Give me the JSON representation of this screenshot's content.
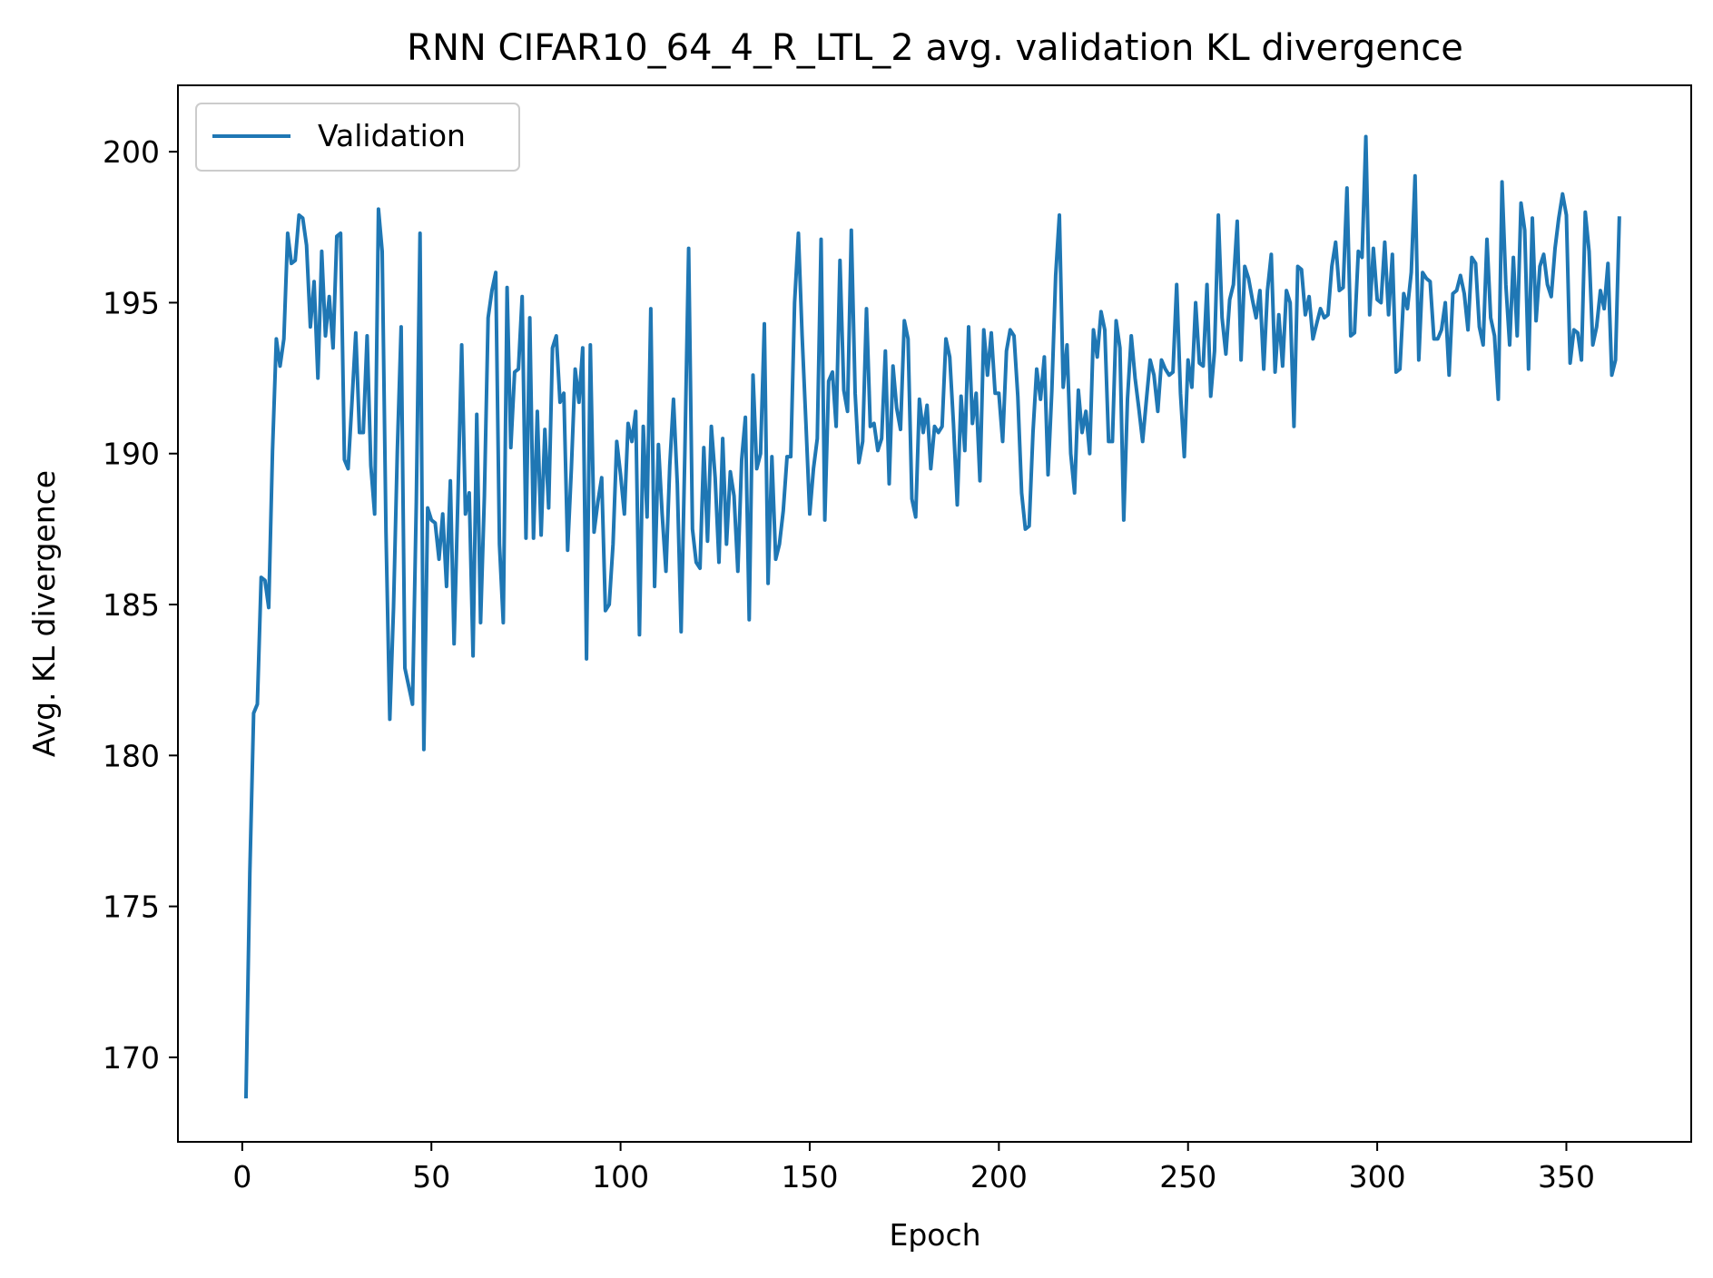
{
  "chart_data": {
    "type": "line",
    "title": "RNN CIFAR10_64_4_R_LTL_2 avg. validation KL divergence",
    "xlabel": "Epoch",
    "ylabel": "Avg. KL divergence",
    "xlim": [
      -17,
      383
    ],
    "ylim": [
      167.2,
      202.2
    ],
    "xticks": [
      0,
      50,
      100,
      150,
      200,
      250,
      300,
      350
    ],
    "yticks": [
      170,
      175,
      180,
      185,
      190,
      195,
      200
    ],
    "grid": false,
    "legend_position": "top-left",
    "colors": {
      "series": "#1f77b4",
      "axes": "#000000",
      "background": "#ffffff",
      "legend_border": "#cccccc"
    },
    "series": [
      {
        "name": "Validation",
        "x_start": 1,
        "values": [
          168.7,
          176.1,
          181.4,
          181.7,
          185.9,
          185.8,
          184.9,
          190.1,
          193.8,
          192.9,
          193.8,
          197.3,
          196.3,
          196.4,
          197.9,
          197.8,
          196.9,
          194.2,
          195.7,
          192.5,
          196.7,
          193.9,
          195.2,
          193.5,
          197.2,
          197.3,
          189.8,
          189.5,
          191.7,
          194.0,
          190.7,
          190.7,
          193.9,
          189.6,
          188.0,
          198.1,
          196.7,
          187.4,
          181.2,
          184.9,
          190.1,
          194.2,
          182.9,
          182.3,
          181.7,
          188.4,
          197.3,
          180.2,
          188.2,
          187.8,
          187.7,
          186.5,
          188.0,
          185.6,
          189.1,
          183.7,
          188.5,
          193.6,
          188.0,
          188.7,
          183.3,
          191.3,
          184.4,
          188.6,
          194.5,
          195.4,
          196.0,
          187.0,
          184.4,
          195.5,
          190.2,
          192.7,
          192.8,
          195.2,
          187.2,
          194.5,
          187.2,
          191.4,
          187.3,
          190.8,
          188.2,
          193.5,
          193.9,
          191.7,
          192.0,
          186.8,
          189.5,
          192.8,
          191.7,
          193.5,
          183.2,
          193.6,
          187.4,
          188.4,
          189.2,
          184.8,
          185.0,
          187.0,
          190.4,
          189.3,
          188.0,
          191.0,
          190.4,
          191.4,
          184.0,
          190.9,
          187.9,
          194.8,
          185.6,
          190.3,
          188.0,
          186.1,
          189.6,
          191.8,
          189.0,
          184.1,
          190.0,
          196.8,
          187.5,
          186.4,
          186.2,
          190.2,
          187.1,
          190.9,
          189.2,
          186.4,
          190.5,
          187.0,
          189.4,
          188.6,
          186.1,
          189.8,
          191.2,
          184.5,
          192.6,
          189.5,
          190.0,
          194.3,
          185.7,
          189.9,
          186.5,
          187.0,
          188.1,
          189.9,
          189.9,
          195.0,
          197.3,
          193.9,
          191.0,
          188.0,
          189.5,
          190.5,
          197.1,
          187.8,
          192.4,
          192.7,
          190.9,
          196.4,
          192.1,
          191.4,
          197.4,
          192.0,
          189.7,
          190.4,
          194.8,
          190.9,
          191.0,
          190.1,
          190.5,
          193.4,
          189.0,
          192.9,
          191.5,
          190.8,
          194.4,
          193.8,
          188.5,
          187.9,
          191.8,
          190.7,
          191.6,
          189.5,
          190.9,
          190.7,
          190.9,
          193.8,
          193.2,
          191.0,
          188.3,
          191.9,
          190.1,
          194.2,
          191.0,
          192.0,
          189.1,
          194.1,
          192.6,
          194.0,
          192.0,
          192.0,
          190.4,
          193.4,
          194.1,
          193.9,
          191.9,
          188.7,
          187.5,
          187.6,
          190.7,
          192.8,
          191.8,
          193.2,
          189.3,
          192.1,
          195.9,
          197.9,
          192.2,
          193.6,
          190.0,
          188.7,
          192.1,
          190.7,
          191.4,
          190.0,
          194.1,
          193.2,
          194.7,
          194.1,
          190.4,
          190.4,
          194.4,
          193.5,
          187.8,
          191.8,
          193.9,
          192.5,
          191.5,
          190.4,
          191.8,
          193.1,
          192.6,
          191.4,
          193.1,
          192.8,
          192.6,
          192.7,
          195.6,
          192.0,
          189.9,
          193.1,
          192.2,
          195.0,
          193.0,
          192.9,
          195.6,
          191.9,
          193.4,
          197.9,
          194.5,
          193.3,
          195.1,
          195.6,
          197.7,
          193.1,
          196.2,
          195.8,
          195.1,
          194.5,
          195.4,
          192.8,
          195.4,
          196.6,
          192.7,
          194.6,
          192.9,
          195.4,
          195.0,
          190.9,
          196.2,
          196.1,
          194.6,
          195.2,
          193.8,
          194.3,
          194.8,
          194.5,
          194.6,
          196.2,
          197.0,
          195.4,
          195.5,
          198.8,
          193.9,
          194.0,
          196.7,
          196.5,
          200.5,
          194.6,
          196.8,
          195.1,
          195.0,
          197.0,
          194.6,
          196.6,
          192.7,
          192.8,
          195.3,
          194.8,
          196.0,
          199.2,
          193.1,
          196.0,
          195.8,
          195.7,
          193.8,
          193.8,
          194.1,
          195.0,
          192.6,
          195.3,
          195.4,
          195.9,
          195.3,
          194.1,
          196.5,
          196.3,
          194.2,
          193.6,
          197.1,
          194.5,
          193.9,
          191.8,
          199.0,
          195.6,
          193.6,
          196.5,
          193.9,
          198.3,
          197.4,
          192.8,
          197.8,
          194.4,
          196.2,
          196.6,
          195.6,
          195.2,
          196.8,
          197.8,
          198.6,
          197.9,
          193.0,
          194.1,
          194.0,
          193.1,
          198.0,
          196.7,
          193.6,
          194.2,
          195.4,
          194.8,
          196.3,
          192.6,
          193.1,
          197.8
        ]
      }
    ]
  }
}
